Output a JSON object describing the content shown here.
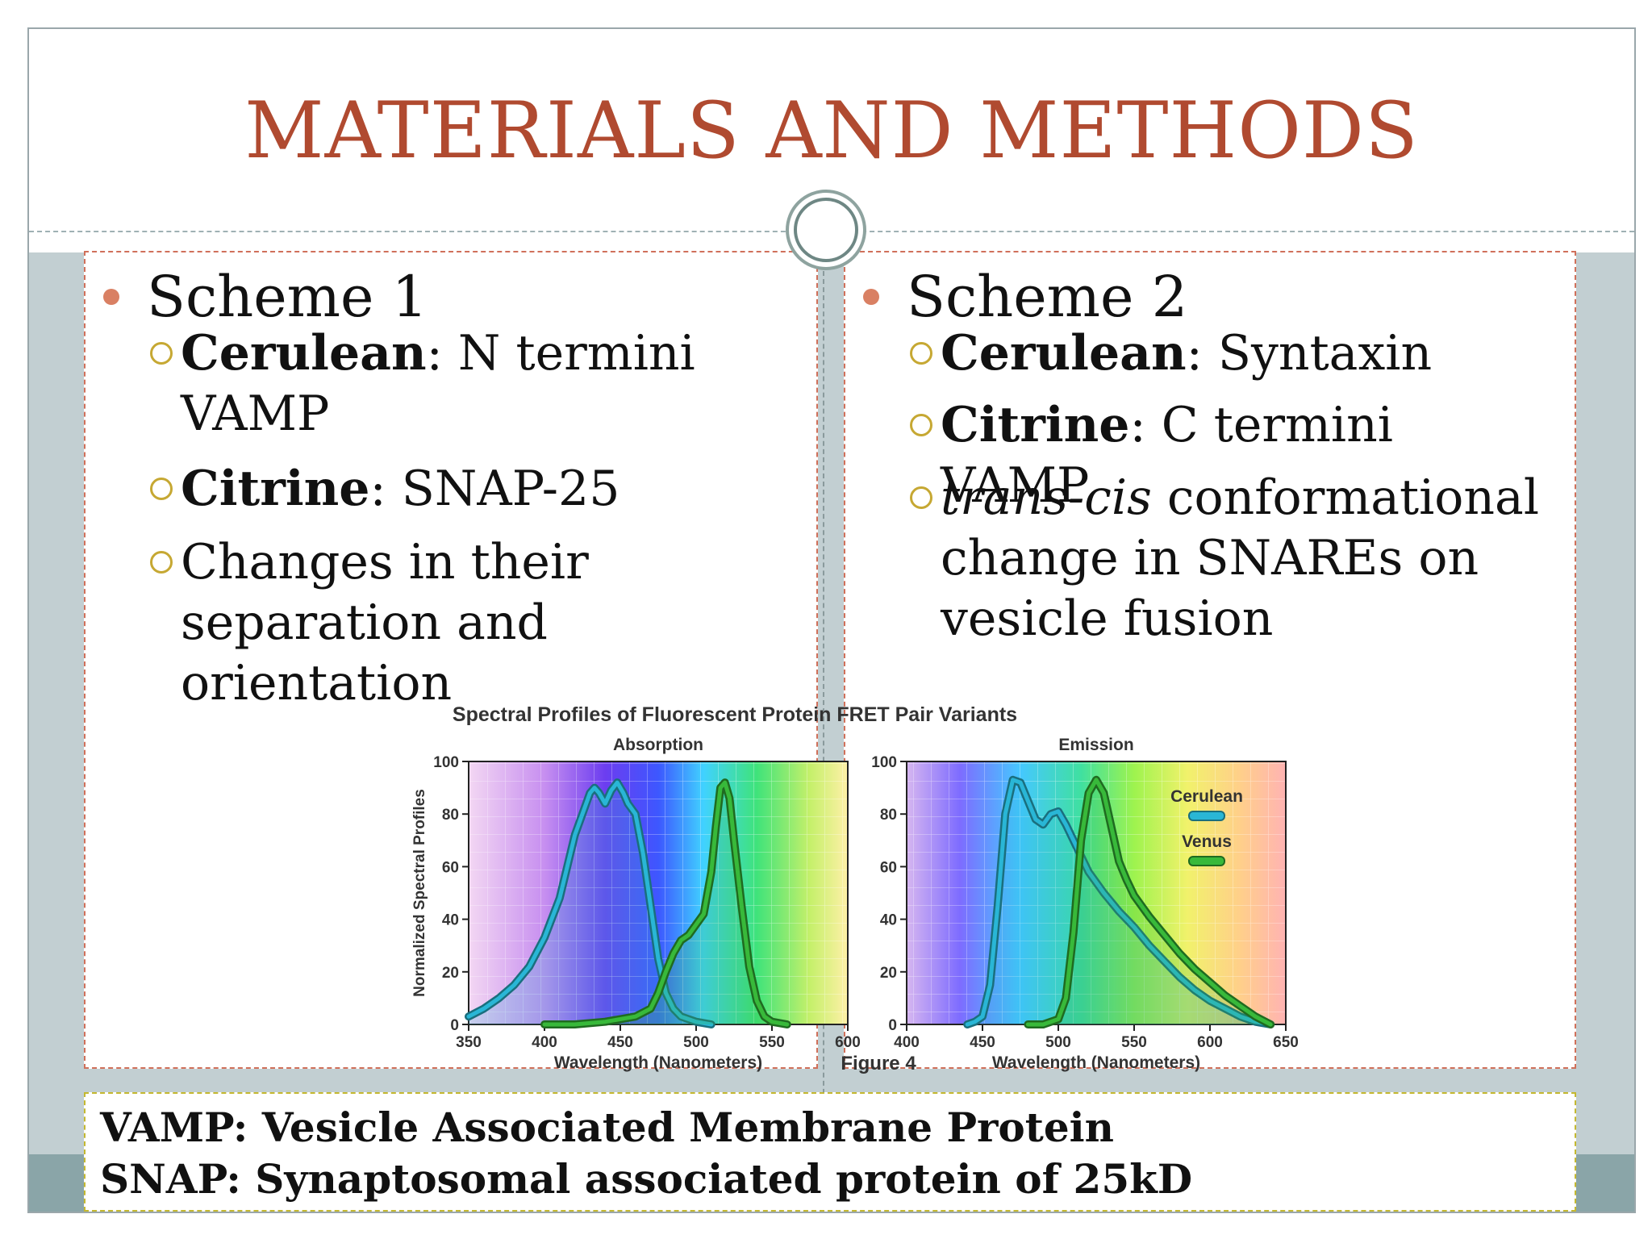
{
  "slide": {
    "title": "MATERIALS AND METHODS"
  },
  "scheme1": {
    "heading": "Scheme 1",
    "items": [
      {
        "bold": "Cerulean",
        "text_line1": ": N termini",
        "text_line2": "VAMP"
      },
      {
        "bold": "Citrine",
        "text": ": SNAP-25"
      },
      {
        "line1": "Changes in their",
        "line2": "separation and orientation"
      }
    ]
  },
  "scheme2": {
    "heading": "Scheme 2",
    "items": [
      {
        "bold": "Cerulean",
        "text": ": Syntaxin"
      },
      {
        "bold": "Citrine",
        "text": ": C termini VAMP"
      },
      {
        "italic": "trans-cis",
        "line1_rest": " conformational",
        "line2": "change in SNAREs on",
        "line3": "vesicle fusion"
      }
    ]
  },
  "footnote": {
    "line1": "VAMP: Vesicle Associated Membrane Protein",
    "line2": "SNAP: Synaptosomal associated protein of 25kD"
  },
  "colors": {
    "title": "#b04a30",
    "cerulean": "#29b6d6",
    "venus": "#38b93a"
  },
  "chart_data": {
    "title": "Spectral Profiles of Fluorescent Protein FRET Pair Variants",
    "caption": "Figure 4",
    "ylabel": "Normalized Spectral Profiles",
    "legend": [
      "Cerulean",
      "Venus"
    ],
    "panels": [
      {
        "type": "area",
        "subtitle": "Absorption",
        "xlabel": "Wavelength (Nanometers)",
        "xlim": [
          350,
          600
        ],
        "ylim": [
          0,
          100
        ],
        "xticks": [
          350,
          400,
          450,
          500,
          550,
          600
        ],
        "yticks": [
          0,
          20,
          40,
          60,
          80,
          100
        ],
        "series": [
          {
            "name": "Cerulean",
            "x": [
              350,
              360,
              370,
              380,
              390,
              400,
              410,
              415,
              420,
              425,
              430,
              433,
              436,
              440,
              444,
              448,
              452,
              455,
              460,
              465,
              470,
              475,
              480,
              485,
              490,
              500,
              510
            ],
            "y": [
              3,
              6,
              10,
              15,
              22,
              33,
              48,
              60,
              72,
              80,
              88,
              90,
              88,
              84,
              89,
              92,
              88,
              84,
              80,
              65,
              45,
              25,
              12,
              6,
              3,
              1,
              0
            ]
          },
          {
            "name": "Venus",
            "x": [
              400,
              420,
              440,
              460,
              470,
              475,
              480,
              485,
              490,
              495,
              500,
              505,
              510,
              513,
              516,
              519,
              522,
              525,
              530,
              535,
              540,
              545,
              550,
              560
            ],
            "y": [
              0,
              0,
              1,
              3,
              6,
              12,
              20,
              27,
              32,
              34,
              38,
              42,
              58,
              75,
              90,
              92,
              86,
              70,
              45,
              22,
              9,
              3,
              1,
              0
            ]
          }
        ]
      },
      {
        "type": "area",
        "subtitle": "Emission",
        "xlabel": "Wavelength (Nanometers)",
        "xlim": [
          400,
          650
        ],
        "ylim": [
          0,
          100
        ],
        "xticks": [
          400,
          450,
          500,
          550,
          600,
          650
        ],
        "yticks": [
          0,
          20,
          40,
          60,
          80,
          100
        ],
        "series": [
          {
            "name": "Cerulean",
            "x": [
              440,
              445,
              450,
              455,
              460,
              465,
              470,
              475,
              480,
              485,
              490,
              495,
              500,
              505,
              510,
              520,
              530,
              540,
              550,
              560,
              570,
              580,
              590,
              600,
              610,
              620,
              630,
              640
            ],
            "y": [
              0,
              1,
              3,
              15,
              45,
              80,
              93,
              92,
              85,
              78,
              76,
              80,
              81,
              76,
              70,
              58,
              50,
              43,
              37,
              30,
              24,
              18,
              13,
              9,
              6,
              3,
              1,
              0
            ]
          },
          {
            "name": "Venus",
            "x": [
              480,
              490,
              500,
              505,
              510,
              515,
              520,
              525,
              530,
              535,
              540,
              545,
              550,
              560,
              570,
              580,
              590,
              600,
              610,
              620,
              630,
              640
            ],
            "y": [
              0,
              0,
              2,
              10,
              35,
              70,
              88,
              93,
              88,
              75,
              62,
              55,
              49,
              41,
              34,
              27,
              21,
              16,
              11,
              7,
              3,
              0
            ]
          }
        ]
      }
    ]
  }
}
